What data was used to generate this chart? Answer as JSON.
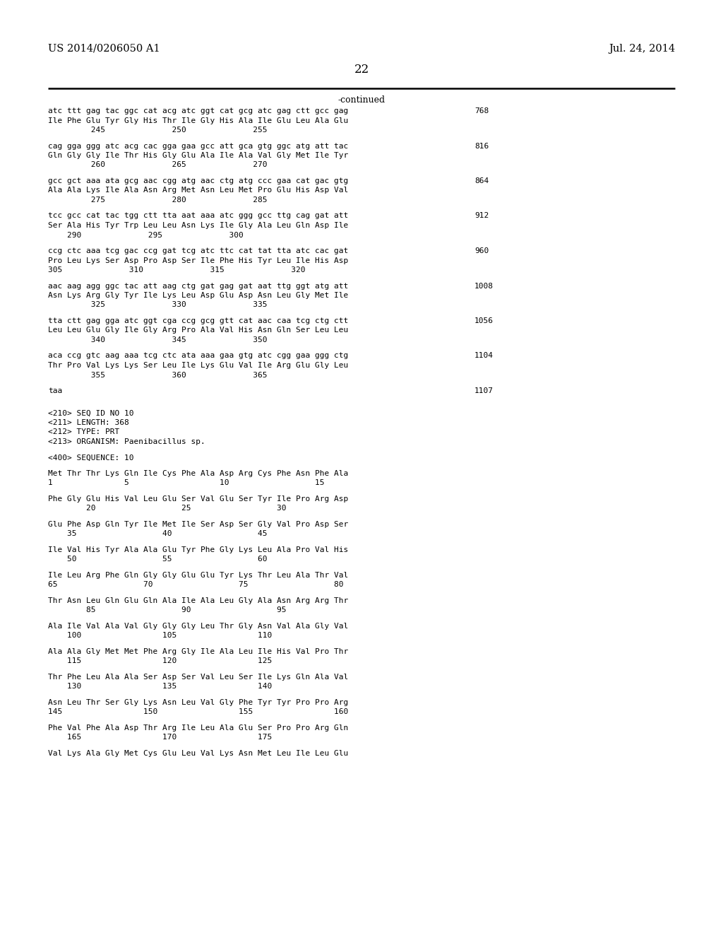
{
  "patent_number": "US 2014/0206050 A1",
  "date": "Jul. 24, 2014",
  "page_number": "22",
  "continued_label": "-continued",
  "background_color": "#ffffff",
  "text_color": "#000000",
  "lines": [
    {
      "text": "atc ttt gag tac ggc cat acg atc ggt cat gcg atc gag ctt gcc gag",
      "num": "768",
      "type": "dna"
    },
    {
      "text": "Ile Phe Glu Tyr Gly His Thr Ile Gly His Ala Ile Glu Leu Ala Glu",
      "type": "aa"
    },
    {
      "text": "         245              250              255",
      "type": "pos"
    },
    {
      "type": "blank"
    },
    {
      "text": "cag gga ggg atc acg cac gga gaa gcc att gca gtg ggc atg att tac",
      "num": "816",
      "type": "dna"
    },
    {
      "text": "Gln Gly Gly Ile Thr His Gly Glu Ala Ile Ala Val Gly Met Ile Tyr",
      "type": "aa"
    },
    {
      "text": "         260              265              270",
      "type": "pos"
    },
    {
      "type": "blank"
    },
    {
      "text": "gcc gct aaa ata gcg aac cgg atg aac ctg atg ccc gaa cat gac gtg",
      "num": "864",
      "type": "dna"
    },
    {
      "text": "Ala Ala Lys Ile Ala Asn Arg Met Asn Leu Met Pro Glu His Asp Val",
      "type": "aa"
    },
    {
      "text": "         275              280              285",
      "type": "pos"
    },
    {
      "type": "blank"
    },
    {
      "text": "tcc gcc cat tac tgg ctt tta aat aaa atc ggg gcc ttg cag gat att",
      "num": "912",
      "type": "dna"
    },
    {
      "text": "Ser Ala His Tyr Trp Leu Leu Asn Lys Ile Gly Ala Leu Gln Asp Ile",
      "type": "aa"
    },
    {
      "text": "    290              295              300",
      "type": "pos"
    },
    {
      "type": "blank"
    },
    {
      "text": "ccg ctc aaa tcg gac ccg gat tcg atc ttc cat tat tta atc cac gat",
      "num": "960",
      "type": "dna"
    },
    {
      "text": "Pro Leu Lys Ser Asp Pro Asp Ser Ile Phe His Tyr Leu Ile His Asp",
      "type": "aa"
    },
    {
      "text": "305              310              315              320",
      "type": "pos"
    },
    {
      "type": "blank"
    },
    {
      "text": "aac aag agg ggc tac att aag ctg gat gag gat aat ttg ggt atg att",
      "num": "1008",
      "type": "dna"
    },
    {
      "text": "Asn Lys Arg Gly Tyr Ile Lys Leu Asp Glu Asp Asn Leu Gly Met Ile",
      "type": "aa"
    },
    {
      "text": "         325              330              335",
      "type": "pos"
    },
    {
      "type": "blank"
    },
    {
      "text": "tta ctt gag gga atc ggt cga ccg gcg gtt cat aac caa tcg ctg ctt",
      "num": "1056",
      "type": "dna"
    },
    {
      "text": "Leu Leu Glu Gly Ile Gly Arg Pro Ala Val His Asn Gln Ser Leu Leu",
      "type": "aa"
    },
    {
      "text": "         340              345              350",
      "type": "pos"
    },
    {
      "type": "blank"
    },
    {
      "text": "aca ccg gtc aag aaa tcg ctc ata aaa gaa gtg atc cgg gaa ggg ctg",
      "num": "1104",
      "type": "dna"
    },
    {
      "text": "Thr Pro Val Lys Lys Ser Leu Ile Lys Glu Val Ile Arg Glu Gly Leu",
      "type": "aa"
    },
    {
      "text": "         355              360              365",
      "type": "pos"
    },
    {
      "type": "blank"
    },
    {
      "text": "taa",
      "num": "1107",
      "type": "dna"
    },
    {
      "type": "blank"
    },
    {
      "type": "blank"
    },
    {
      "text": "<210> SEQ ID NO 10",
      "type": "meta"
    },
    {
      "text": "<211> LENGTH: 368",
      "type": "meta"
    },
    {
      "text": "<212> TYPE: PRT",
      "type": "meta"
    },
    {
      "text": "<213> ORGANISM: Paenibacillus sp.",
      "type": "meta"
    },
    {
      "type": "blank"
    },
    {
      "text": "<400> SEQUENCE: 10",
      "type": "meta"
    },
    {
      "type": "blank"
    },
    {
      "text": "Met Thr Thr Lys Gln Ile Cys Phe Ala Asp Arg Cys Phe Asn Phe Ala",
      "type": "aa2"
    },
    {
      "text": "1               5                   10                  15",
      "type": "pos2"
    },
    {
      "type": "blank"
    },
    {
      "text": "Phe Gly Glu His Val Leu Glu Ser Val Glu Ser Tyr Ile Pro Arg Asp",
      "type": "aa2"
    },
    {
      "text": "        20                  25                  30",
      "type": "pos2"
    },
    {
      "type": "blank"
    },
    {
      "text": "Glu Phe Asp Gln Tyr Ile Met Ile Ser Asp Ser Gly Val Pro Asp Ser",
      "type": "aa2"
    },
    {
      "text": "    35                  40                  45",
      "type": "pos2"
    },
    {
      "type": "blank"
    },
    {
      "text": "Ile Val His Tyr Ala Ala Glu Tyr Phe Gly Lys Leu Ala Pro Val His",
      "type": "aa2"
    },
    {
      "text": "    50                  55                  60",
      "type": "pos2"
    },
    {
      "type": "blank"
    },
    {
      "text": "Ile Leu Arg Phe Gln Gly Gly Glu Glu Tyr Lys Thr Leu Ala Thr Val",
      "type": "aa2"
    },
    {
      "text": "65                  70                  75                  80",
      "type": "pos2"
    },
    {
      "type": "blank"
    },
    {
      "text": "Thr Asn Leu Gln Glu Gln Ala Ile Ala Leu Gly Ala Asn Arg Arg Thr",
      "type": "aa2"
    },
    {
      "text": "        85                  90                  95",
      "type": "pos2"
    },
    {
      "type": "blank"
    },
    {
      "text": "Ala Ile Val Ala Val Gly Gly Gly Leu Thr Gly Asn Val Ala Gly Val",
      "type": "aa2"
    },
    {
      "text": "    100                 105                 110",
      "type": "pos2"
    },
    {
      "type": "blank"
    },
    {
      "text": "Ala Ala Gly Met Met Phe Arg Gly Ile Ala Leu Ile His Val Pro Thr",
      "type": "aa2"
    },
    {
      "text": "    115                 120                 125",
      "type": "pos2"
    },
    {
      "type": "blank"
    },
    {
      "text": "Thr Phe Leu Ala Ala Ser Asp Ser Val Leu Ser Ile Lys Gln Ala Val",
      "type": "aa2"
    },
    {
      "text": "    130                 135                 140",
      "type": "pos2"
    },
    {
      "type": "blank"
    },
    {
      "text": "Asn Leu Thr Ser Gly Lys Asn Leu Val Gly Phe Tyr Tyr Pro Pro Arg",
      "type": "aa2"
    },
    {
      "text": "145                 150                 155                 160",
      "type": "pos2"
    },
    {
      "type": "blank"
    },
    {
      "text": "Phe Val Phe Ala Asp Thr Arg Ile Leu Ala Glu Ser Pro Pro Arg Gln",
      "type": "aa2"
    },
    {
      "text": "    165                 170                 175",
      "type": "pos2"
    },
    {
      "type": "blank"
    },
    {
      "text": "Val Lys Ala Gly Met Cys Glu Leu Val Lys Asn Met Leu Ile Leu Glu",
      "type": "aa2"
    }
  ]
}
